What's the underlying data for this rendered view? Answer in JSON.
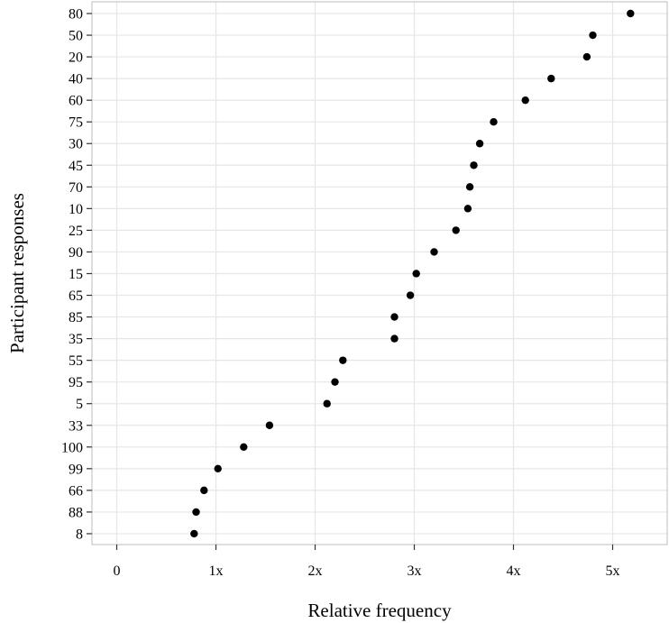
{
  "chart_data": {
    "type": "scatter",
    "title": "",
    "xlabel": "Relative frequency",
    "ylabel": "Participant responses",
    "xlim": [
      -0.25,
      5.55
    ],
    "x_ticks": [
      0,
      1,
      2,
      3,
      4,
      5
    ],
    "x_tick_labels": [
      "0",
      "1x",
      "2x",
      "3x",
      "4x",
      "5x"
    ],
    "grid": true,
    "legend": "none",
    "point_color": "#000000",
    "categories": [
      "80",
      "50",
      "20",
      "40",
      "60",
      "75",
      "30",
      "45",
      "70",
      "10",
      "25",
      "90",
      "15",
      "65",
      "85",
      "35",
      "55",
      "95",
      "5",
      "33",
      "100",
      "99",
      "66",
      "88",
      "8"
    ],
    "values": [
      5.18,
      4.8,
      4.74,
      4.38,
      4.12,
      3.8,
      3.66,
      3.6,
      3.56,
      3.54,
      3.42,
      3.2,
      3.02,
      2.96,
      2.8,
      2.8,
      2.28,
      2.2,
      2.12,
      1.54,
      1.28,
      1.02,
      0.88,
      0.8,
      0.78
    ]
  }
}
